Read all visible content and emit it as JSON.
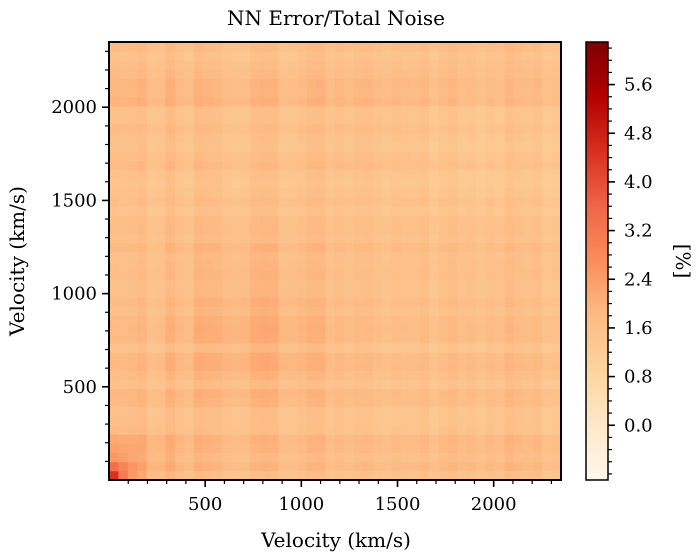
{
  "chart_data": {
    "type": "heatmap",
    "title": "NN Error/Total Noise",
    "xlabel": "Velocity (km/s)",
    "ylabel": "Velocity (km/s)",
    "xlim": [
      0,
      2350
    ],
    "ylim": [
      0,
      2350
    ],
    "x_ticks": [
      500,
      1000,
      1500,
      2000
    ],
    "y_ticks": [
      500,
      1000,
      1500,
      2000
    ],
    "colorbar": {
      "label": "[%]",
      "range": [
        -0.9,
        6.3
      ],
      "ticks": [
        0.0,
        0.8,
        1.6,
        2.4,
        3.2,
        4.0,
        4.8,
        5.6
      ],
      "tick_labels": [
        "0.0",
        "0.8",
        "1.6",
        "2.4",
        "3.2",
        "4.0",
        "4.8",
        "5.6"
      ],
      "colormap": "OrRd",
      "colors": [
        "#fff7ec",
        "#fee8c8",
        "#fdd49e",
        "#fdbb84",
        "#fc8d59",
        "#ef6548",
        "#d7301f",
        "#b30000",
        "#7f0000"
      ]
    },
    "grid": false,
    "summary": {
      "min_value_approx": 0.8,
      "max_value_approx": 6.0,
      "max_location": "near origin (low velocity, low velocity)",
      "typical_value_approx": 1.9
    }
  }
}
